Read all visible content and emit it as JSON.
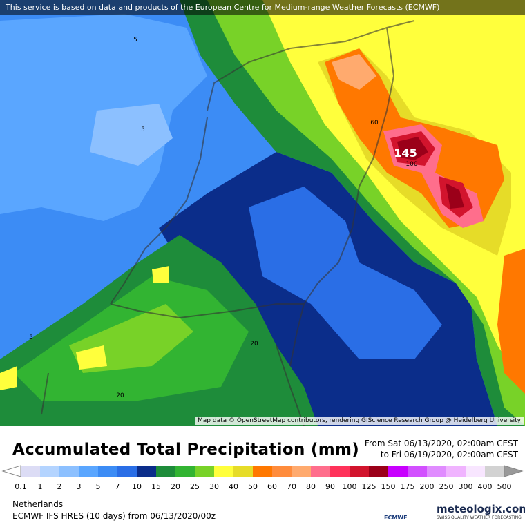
{
  "notice": "This service is based on data and products of the European Centre for Medium-range Weather Forecasts (ECMWF)",
  "attribution": "Map data © OpenStreetMap contributors, rendering GIScience Research Group @ Heidelberg University",
  "contour_labels": [
    "5",
    "5",
    "5",
    "60",
    "145",
    "100",
    "20",
    "20"
  ],
  "title": "Accumulated Total Precipitation (mm)",
  "from": "From Sat 06/13/2020, 02:00am CEST",
  "to": "to Fri 06/19/2020, 02:00am CEST",
  "legend": {
    "labels": [
      0.1,
      1,
      2,
      3,
      5,
      7,
      10,
      15,
      20,
      25,
      30,
      40,
      50,
      60,
      70,
      80,
      90,
      100,
      125,
      150,
      175,
      200,
      250,
      300,
      400,
      500
    ],
    "colors": [
      "#dcdcf5",
      "#b4d4ff",
      "#8cc0ff",
      "#5aa6ff",
      "#3c8cf5",
      "#2a6ee6",
      "#0b2d8a",
      "#1e8c3a",
      "#32b432",
      "#78d228",
      "#ffff3c",
      "#e6dc28",
      "#ff7800",
      "#ff8c3c",
      "#ffaa6e",
      "#ff6e8c",
      "#ff325a",
      "#d2142d",
      "#9b0019",
      "#c800ff",
      "#d250ff",
      "#e08cff",
      "#f0b4ff",
      "#f8e6ff",
      "#d2d2d2"
    ]
  },
  "region": "Netherlands",
  "model": "ECMWF IFS HRES (10 days) from 06/13/2020/00z",
  "ecmwf_logo": "ECMWF",
  "brand": "meteologix.com",
  "tagline": "SWISS QUALITY WEATHER FORECASTING"
}
